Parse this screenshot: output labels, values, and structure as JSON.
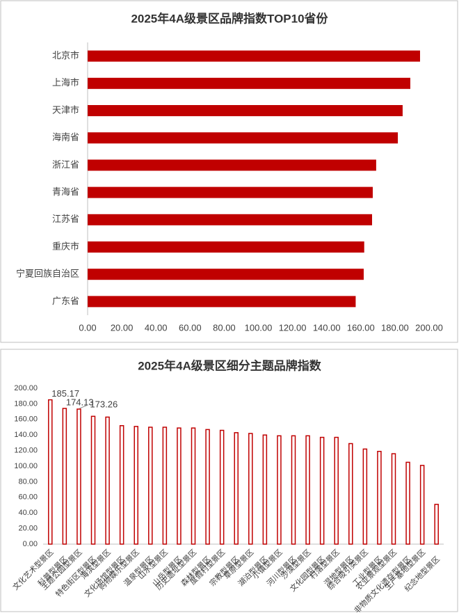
{
  "chart_data": [
    {
      "type": "hbar",
      "title": "2025年4A级景区品牌指数TOP10省份",
      "categories": [
        "北京市",
        "上海市",
        "天津市",
        "海南省",
        "浙江省",
        "青海省",
        "江苏省",
        "重庆市",
        "宁夏回族自治区",
        "广东省"
      ],
      "values": [
        194.7,
        189.0,
        184.5,
        181.7,
        169.0,
        167.0,
        166.6,
        162.0,
        161.7,
        157.0
      ],
      "color": "#c00000",
      "xlim": [
        0,
        200
      ],
      "xticks": [
        {
          "value": 0,
          "label": "0.00"
        },
        {
          "value": 20,
          "label": "20.00"
        },
        {
          "value": 40,
          "label": "40.00"
        },
        {
          "value": 60,
          "label": "60.00"
        },
        {
          "value": 80,
          "label": "80.00"
        },
        {
          "value": 100,
          "label": "100.00"
        },
        {
          "value": 120,
          "label": "120.00"
        },
        {
          "value": 140,
          "label": "140.00"
        },
        {
          "value": 160,
          "label": "160.00"
        },
        {
          "value": 180,
          "label": "180.00"
        },
        {
          "value": 200,
          "label": "200.00"
        }
      ]
    },
    {
      "type": "outline-bar",
      "title": "2025年4A级景区细分主题品牌指数",
      "categories": [
        "文化艺术型景区",
        "科普型景区",
        "主题公园型景区",
        "特色街区型景区",
        "海滨型景区",
        "文化场馆型景区",
        "购物娱乐型景区",
        "温泉型景区",
        "山水型景区",
        "山岳型景区",
        "历史遗址型景区",
        "森林型景区",
        "度假村型景区",
        "宗教型景区",
        "草原型景区",
        "湖泊型景区",
        "小镇型景区",
        "河川型景区",
        "沙漠型景区",
        "文化园型景区",
        "村落型景区",
        "湿地型景区",
        "综合吸引类景区",
        "工业型景区",
        "农业景观型景区",
        "非物质文化遗存型景区",
        "生产基地型景区",
        "纪念地型景区"
      ],
      "values": [
        185.17,
        174.13,
        173.26,
        164,
        163,
        152,
        151,
        150,
        150,
        149,
        149,
        147,
        146,
        143,
        142,
        140,
        139,
        139,
        139,
        137,
        137,
        129,
        122,
        119,
        116,
        105,
        101,
        51
      ],
      "value_labels": [
        "185.17",
        "174.13",
        "173.26",
        null,
        null,
        null,
        null,
        null,
        null,
        null,
        null,
        null,
        null,
        null,
        null,
        null,
        null,
        null,
        null,
        null,
        null,
        null,
        null,
        null,
        null,
        null,
        null,
        null
      ],
      "color": "#c00000",
      "ylim": [
        0,
        200
      ],
      "yticks": [
        {
          "value": 0,
          "label": "0.00"
        },
        {
          "value": 20,
          "label": "20.00"
        },
        {
          "value": 40,
          "label": "40.00"
        },
        {
          "value": 60,
          "label": "60.00"
        },
        {
          "value": 80,
          "label": "80.00"
        },
        {
          "value": 100,
          "label": "100.00"
        },
        {
          "value": 120,
          "label": "120.00"
        },
        {
          "value": 140,
          "label": "140.00"
        },
        {
          "value": 160,
          "label": "160.00"
        },
        {
          "value": 180,
          "label": "180.00"
        },
        {
          "value": 200,
          "label": "200.00"
        }
      ]
    }
  ]
}
